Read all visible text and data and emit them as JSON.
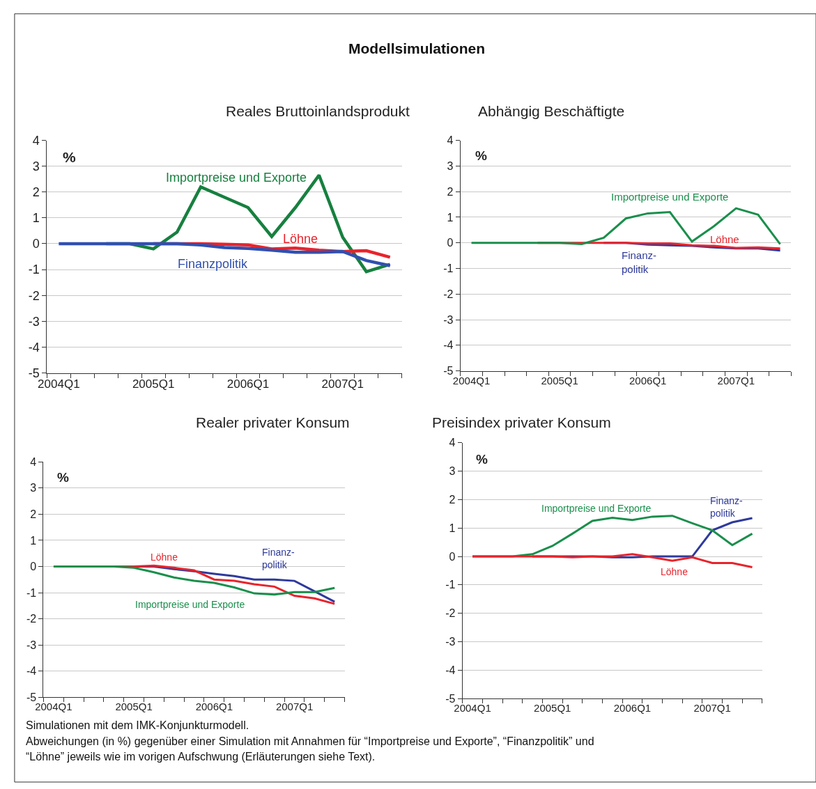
{
  "chart_data": [
    {
      "type": "line",
      "title": "Reales Bruttoinlandsprodukt",
      "ylabel": "%",
      "categories": [
        "2004Q1",
        null,
        null,
        null,
        "2005Q1",
        null,
        null,
        null,
        "2006Q1",
        null,
        null,
        null,
        "2007Q1",
        null,
        null
      ],
      "ylim": [
        -5,
        4
      ],
      "yticks": [
        -5,
        -4,
        -3,
        -2,
        -1,
        0,
        1,
        2,
        3,
        4
      ],
      "grid": "y",
      "legend": false,
      "marker": "none",
      "line_style": "solid",
      "annotations": [
        "Modellsimulationen"
      ],
      "series": [
        {
          "name": "Importpreise und Exporte",
          "color": "#17803f",
          "values": [
            null,
            null,
            0,
            0,
            -0.2,
            0.45,
            2.2,
            1.8,
            1.4,
            0.28,
            1.4,
            2.65,
            0.25,
            -1.08,
            -0.8
          ]
        },
        {
          "name": "Löhne",
          "color": "#e8242c",
          "values": [
            null,
            null,
            null,
            null,
            0,
            0,
            0,
            -0.02,
            -0.05,
            -0.2,
            -0.17,
            -0.25,
            -0.3,
            -0.27,
            -0.52
          ]
        },
        {
          "name": "Finanzpolitik",
          "color": "#3050b0",
          "values": [
            0,
            0,
            0,
            0,
            0,
            0,
            -0.05,
            -0.15,
            -0.18,
            -0.25,
            -0.33,
            -0.33,
            -0.3,
            -0.65,
            -0.85
          ]
        }
      ]
    },
    {
      "type": "line",
      "title": "Abhängig Beschäftigte",
      "ylabel": "%",
      "categories": [
        "2004Q1",
        null,
        null,
        null,
        "2005Q1",
        null,
        null,
        null,
        "2006Q1",
        null,
        null,
        null,
        "2007Q1",
        null,
        null
      ],
      "ylim": [
        -5,
        4
      ],
      "yticks": [
        -5,
        -4,
        -3,
        -2,
        -1,
        0,
        1,
        2,
        3,
        4
      ],
      "grid": "y",
      "legend": false,
      "marker": "none",
      "line_style": "solid",
      "series": [
        {
          "name": "Finanz-\npolitik",
          "color": "#2e3a9c",
          "values": [
            null,
            null,
            null,
            null,
            null,
            null,
            0,
            0,
            -0.07,
            -0.1,
            -0.12,
            -0.18,
            -0.22,
            -0.22,
            -0.3
          ]
        },
        {
          "name": "Löhne",
          "color": "#e8242c",
          "values": [
            null,
            null,
            null,
            0,
            0,
            0,
            0,
            0,
            -0.02,
            -0.02,
            -0.1,
            -0.12,
            -0.2,
            -0.18,
            -0.22
          ]
        },
        {
          "name": "Importpreise und Exporte",
          "color": "#1a8f4c",
          "values": [
            0,
            0,
            0,
            0,
            0,
            -0.05,
            0.2,
            0.95,
            1.15,
            1.2,
            0.05,
            0.65,
            1.35,
            1.1,
            -0.05
          ]
        }
      ]
    },
    {
      "type": "line",
      "title": "Realer privater Konsum",
      "ylabel": "%",
      "categories": [
        "2004Q1",
        null,
        null,
        null,
        "2005Q1",
        null,
        null,
        null,
        "2006Q1",
        null,
        null,
        null,
        "2007Q1",
        null,
        null
      ],
      "ylim": [
        -5,
        4
      ],
      "yticks": [
        -5,
        -4,
        -3,
        -2,
        -1,
        0,
        1,
        2,
        3,
        4
      ],
      "grid": "y",
      "legend": false,
      "marker": "none",
      "line_style": "solid",
      "series": [
        {
          "name": "Finanz-\npolitik",
          "color": "#2e3a9c",
          "values": [
            null,
            null,
            null,
            null,
            0,
            0,
            -0.1,
            -0.18,
            -0.28,
            -0.37,
            -0.5,
            -0.5,
            -0.55,
            -0.95,
            -1.35
          ]
        },
        {
          "name": "Löhne",
          "color": "#e8242c",
          "values": [
            null,
            null,
            0,
            0,
            0,
            0.03,
            -0.05,
            -0.15,
            -0.5,
            -0.55,
            -0.68,
            -0.77,
            -1.12,
            -1.22,
            -1.43
          ]
        },
        {
          "name": "Importpreise und Exporte",
          "color": "#1a8f4c",
          "values": [
            0,
            0,
            0,
            0,
            -0.05,
            -0.22,
            -0.42,
            -0.55,
            -0.63,
            -0.8,
            -1.03,
            -1.07,
            -0.98,
            -0.98,
            -0.82
          ]
        }
      ]
    },
    {
      "type": "line",
      "title": "Preisindex privater Konsum",
      "ylabel": "%",
      "categories": [
        "2004Q1",
        null,
        null,
        null,
        "2005Q1",
        null,
        null,
        null,
        "2006Q1",
        null,
        null,
        null,
        "2007Q1",
        null,
        null
      ],
      "ylim": [
        -5,
        4
      ],
      "yticks": [
        -5,
        -4,
        -3,
        -2,
        -1,
        0,
        1,
        2,
        3,
        4
      ],
      "grid": "y",
      "legend": false,
      "marker": "none",
      "line_style": "solid",
      "annotations": [
        "Simulationen mit dem IMK-Konjunkturmodell.",
        "Abweichungen (in %) gegenüber einer Simulation mit Annahmen für “Importpreise und Exporte”, “Finanzpolitik” und",
        "“Löhne” jeweils wie im vorigen Aufschwung (Erläuterungen siehe Text)."
      ],
      "series": [
        {
          "name": "Finanz-\npolitik",
          "color": "#2e3a9c",
          "values": [
            null,
            null,
            null,
            0,
            0,
            0,
            0,
            -0.03,
            -0.03,
            0,
            0,
            0,
            0.92,
            1.2,
            1.35
          ]
        },
        {
          "name": "Importpreise und Exporte",
          "color": "#1a8f4c",
          "values": [
            0,
            0,
            0,
            0.08,
            0.37,
            0.8,
            1.25,
            1.36,
            1.28,
            1.4,
            1.43,
            1.17,
            0.92,
            0.4,
            0.8
          ]
        },
        {
          "name": "Löhne",
          "color": "#e8242c",
          "values": [
            0,
            0,
            0,
            0,
            0,
            -0.03,
            0,
            0,
            0.08,
            -0.03,
            -0.15,
            -0.03,
            -0.23,
            -0.23,
            -0.38
          ]
        }
      ]
    }
  ]
}
